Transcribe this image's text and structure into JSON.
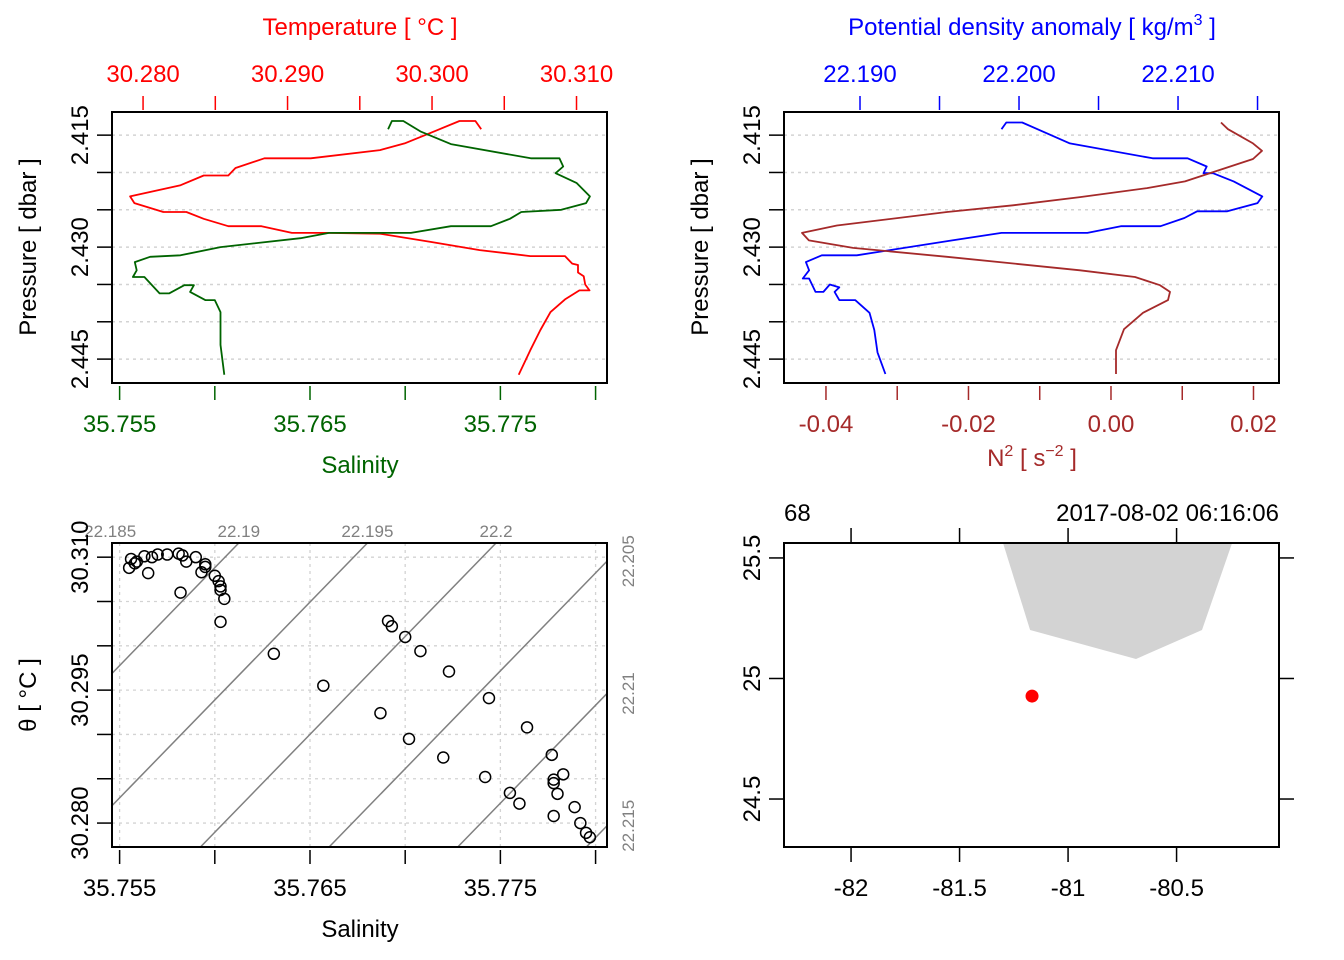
{
  "colors": {
    "temperature": "#FF0000",
    "salinity": "#006400",
    "density": "#0000FF",
    "n2": "#A52A2A",
    "station": "#FF0000",
    "land": "#D3D3D3",
    "isopycnal": "#808080",
    "grid": "#D3D3D3"
  },
  "chart_data": [
    {
      "type": "line",
      "panel": "profile-temperature-salinity",
      "top_axis": {
        "label": "Temperature [ °C ]",
        "lim": [
          30.27785,
          30.31211
        ],
        "ticks": [
          30.28,
          30.285,
          30.29,
          30.295,
          30.3,
          30.305,
          30.31
        ],
        "tick_labels": [
          "30.280",
          "",
          "30.290",
          "",
          "30.300",
          "",
          "30.310"
        ]
      },
      "bottom_axis": {
        "label": "Salinity",
        "lim": [
          35.7546,
          35.7806
        ],
        "ticks": [
          35.755,
          35.76,
          35.765,
          35.77,
          35.775,
          35.78
        ],
        "tick_labels": [
          "35.755",
          "",
          "35.765",
          "",
          "35.775",
          ""
        ]
      },
      "y_axis": {
        "label": "Pressure [ dbar ]",
        "lim": [
          2.4119,
          2.4482
        ],
        "reversed": true,
        "ticks": [
          2.415,
          2.42,
          2.425,
          2.43,
          2.435,
          2.44,
          2.445
        ],
        "tick_labels": [
          "2.415",
          "",
          "",
          "2.430",
          "",
          "",
          "2.445"
        ]
      },
      "grid": "horizontal-dashed",
      "series": [
        {
          "name": "Temperature",
          "axis": "top",
          "color_key": "temperature",
          "points": [
            [
              30.3034,
              2.4142
            ],
            [
              30.303,
              2.4131
            ],
            [
              30.3019,
              2.4131
            ],
            [
              30.3004,
              2.4143
            ],
            [
              30.2981,
              2.4161
            ],
            [
              30.2964,
              2.417
            ],
            [
              30.2916,
              2.4181
            ],
            [
              30.2884,
              2.4181
            ],
            [
              30.2864,
              2.4194
            ],
            [
              30.2859,
              2.4204
            ],
            [
              30.2842,
              2.4204
            ],
            [
              30.2826,
              2.4217
            ],
            [
              30.2791,
              2.4232
            ],
            [
              30.2794,
              2.4241
            ],
            [
              30.2814,
              2.4253
            ],
            [
              30.283,
              2.4253
            ],
            [
              30.2842,
              2.4262
            ],
            [
              30.2859,
              2.4272
            ],
            [
              30.2882,
              2.4272
            ],
            [
              30.2903,
              2.4281
            ],
            [
              30.2926,
              2.4281
            ],
            [
              30.2964,
              2.4282
            ],
            [
              30.2999,
              2.4293
            ],
            [
              30.3033,
              2.4304
            ],
            [
              30.3068,
              2.4312
            ],
            [
              30.3092,
              2.4312
            ],
            [
              30.3097,
              2.4322
            ],
            [
              30.3101,
              2.4324
            ],
            [
              30.3101,
              2.4334
            ],
            [
              30.3105,
              2.4339
            ],
            [
              30.3106,
              2.435
            ],
            [
              30.3109,
              2.4358
            ],
            [
              30.3102,
              2.4358
            ],
            [
              30.3092,
              2.437
            ],
            [
              30.3082,
              2.4387
            ],
            [
              30.3075,
              2.4411
            ],
            [
              30.3068,
              2.4438
            ],
            [
              30.306,
              2.4471
            ]
          ]
        },
        {
          "name": "Salinity",
          "axis": "bottom",
          "color_key": "salinity",
          "points": [
            [
              35.7691,
              2.4142
            ],
            [
              35.7693,
              2.4131
            ],
            [
              35.7699,
              2.4131
            ],
            [
              35.7708,
              2.4145
            ],
            [
              35.7724,
              2.4162
            ],
            [
              35.7766,
              2.4181
            ],
            [
              35.7781,
              2.4181
            ],
            [
              35.7783,
              2.4192
            ],
            [
              35.7779,
              2.4201
            ],
            [
              35.779,
              2.4214
            ],
            [
              35.7797,
              2.4232
            ],
            [
              35.7795,
              2.4241
            ],
            [
              35.7782,
              2.425
            ],
            [
              35.7761,
              2.4253
            ],
            [
              35.7755,
              2.4262
            ],
            [
              35.7745,
              2.4272
            ],
            [
              35.7724,
              2.4272
            ],
            [
              35.7703,
              2.4281
            ],
            [
              35.766,
              2.4281
            ],
            [
              35.7645,
              2.4288
            ],
            [
              35.7603,
              2.43
            ],
            [
              35.7582,
              2.4311
            ],
            [
              35.7566,
              2.4313
            ],
            [
              35.7558,
              2.432
            ],
            [
              35.7559,
              2.4331
            ],
            [
              35.7557,
              2.434
            ],
            [
              35.7563,
              2.434
            ],
            [
              35.7571,
              2.4362
            ],
            [
              35.7576,
              2.4362
            ],
            [
              35.7584,
              2.4351
            ],
            [
              35.7589,
              2.4351
            ],
            [
              35.7587,
              2.436
            ],
            [
              35.7595,
              2.4371
            ],
            [
              35.76,
              2.4371
            ],
            [
              35.7603,
              2.4387
            ],
            [
              35.7603,
              2.4398
            ],
            [
              35.7603,
              2.4431
            ],
            [
              35.7605,
              2.4471
            ]
          ]
        }
      ]
    },
    {
      "type": "line",
      "panel": "profile-density-n2",
      "top_axis": {
        "label_parts": [
          "Potential density anomaly [ kg/m",
          "3",
          " ]"
        ],
        "lim": [
          22.18522,
          22.21635
        ],
        "ticks": [
          22.19,
          22.195,
          22.2,
          22.205,
          22.21,
          22.215
        ],
        "tick_labels": [
          "22.190",
          "",
          "22.200",
          "",
          "22.210",
          ""
        ]
      },
      "bottom_axis": {
        "label_parts": [
          "N",
          "2",
          " [ s",
          "−2",
          " ]"
        ],
        "lim": [
          -0.04589,
          0.02358
        ],
        "ticks": [
          -0.04,
          -0.03,
          -0.02,
          -0.01,
          0.0,
          0.01,
          0.02
        ],
        "tick_labels": [
          "-0.04",
          "",
          "-0.02",
          "",
          "0.00",
          "",
          "0.02"
        ]
      },
      "y_axis": {
        "label": "Pressure [ dbar ]",
        "lim": [
          2.4119,
          2.4482
        ],
        "reversed": true,
        "ticks": [
          2.415,
          2.42,
          2.425,
          2.43,
          2.435,
          2.44,
          2.445
        ],
        "tick_labels": [
          "2.415",
          "",
          "",
          "2.430",
          "",
          "",
          "2.445"
        ]
      },
      "grid": "horizontal-dashed",
      "series": [
        {
          "name": "Potential density anomaly",
          "axis": "top",
          "color_key": "density",
          "points": [
            [
              22.1989,
              2.4142
            ],
            [
              22.1992,
              2.4133
            ],
            [
              22.2002,
              2.4133
            ],
            [
              22.2032,
              2.4161
            ],
            [
              22.2084,
              2.4181
            ],
            [
              22.2106,
              2.4181
            ],
            [
              22.2118,
              2.4192
            ],
            [
              22.2116,
              2.4201
            ],
            [
              22.2122,
              2.4201
            ],
            [
              22.2135,
              2.4212
            ],
            [
              22.2153,
              2.4232
            ],
            [
              22.215,
              2.4241
            ],
            [
              22.2131,
              2.4252
            ],
            [
              22.2112,
              2.4252
            ],
            [
              22.2104,
              2.4261
            ],
            [
              22.2089,
              2.4272
            ],
            [
              22.2064,
              2.4272
            ],
            [
              22.2043,
              2.4281
            ],
            [
              22.1989,
              2.4281
            ],
            [
              22.1958,
              2.4291
            ],
            [
              22.1898,
              2.4311
            ],
            [
              22.1876,
              2.4311
            ],
            [
              22.1866,
              2.432
            ],
            [
              22.1868,
              2.4331
            ],
            [
              22.1864,
              2.4342
            ],
            [
              22.1868,
              2.4342
            ],
            [
              22.1872,
              2.436
            ],
            [
              22.1877,
              2.436
            ],
            [
              22.1881,
              2.435
            ],
            [
              22.1887,
              2.4354
            ],
            [
              22.1884,
              2.436
            ],
            [
              22.1887,
              2.4371
            ],
            [
              22.1897,
              2.4371
            ],
            [
              22.1906,
              2.4388
            ],
            [
              22.1909,
              2.4411
            ],
            [
              22.1911,
              2.4441
            ],
            [
              22.1916,
              2.447
            ]
          ]
        },
        {
          "name": "N2",
          "axis": "bottom",
          "color_key": "n2",
          "points": [
            [
              0.01544,
              2.4133
            ],
            [
              0.01642,
              2.4142
            ],
            [
              0.01993,
              2.4161
            ],
            [
              0.02119,
              2.4171
            ],
            [
              0.01993,
              2.4182
            ],
            [
              0.01039,
              2.4212
            ],
            [
              0.00505,
              2.4221
            ],
            [
              -0.00435,
              2.4233
            ],
            [
              -0.01375,
              2.4244
            ],
            [
              -0.02302,
              2.4253
            ],
            [
              -0.03846,
              2.4271
            ],
            [
              -0.04337,
              2.4281
            ],
            [
              -0.04239,
              2.4291
            ],
            [
              -0.03621,
              2.4301
            ],
            [
              -0.02302,
              2.4313
            ],
            [
              -0.00435,
              2.4331
            ],
            [
              0.00337,
              2.434
            ],
            [
              0.00688,
              2.4351
            ],
            [
              0.00828,
              2.436
            ],
            [
              0.008,
              2.4371
            ],
            [
              0.00449,
              2.4388
            ],
            [
              0.00182,
              2.441
            ],
            [
              0.0007,
              2.4438
            ],
            [
              0.0007,
              2.447
            ]
          ]
        }
      ]
    },
    {
      "type": "scatter",
      "panel": "ts-diagram",
      "x_axis": {
        "label": "Salinity",
        "lim": [
          35.7546,
          35.7806
        ],
        "ticks": [
          35.755,
          35.76,
          35.765,
          35.77,
          35.775,
          35.78
        ],
        "tick_labels": [
          "35.755",
          "",
          "35.765",
          "",
          "35.775",
          ""
        ]
      },
      "y_axis": {
        "label": "θ [ °C ]",
        "lim": [
          30.2773,
          30.3116
        ],
        "ticks": [
          30.28,
          30.285,
          30.29,
          30.295,
          30.3,
          30.305,
          30.31
        ],
        "tick_labels": [
          "30.280",
          "",
          "",
          "30.295",
          "",
          "",
          "30.310"
        ]
      },
      "grid": "both-dashed",
      "isopycnals": {
        "levels_top": [
          22.185,
          22.19,
          22.195,
          22.2
        ],
        "labels_top": [
          "22.185",
          "22.19",
          "22.195",
          "22.2"
        ],
        "levels_right": [
          22.205,
          22.21,
          22.215
        ],
        "labels_right": [
          "22.205",
          "22.21",
          "22.215"
        ]
      },
      "points": [
        [
          35.7555,
          30.3088
        ],
        [
          35.7556,
          30.3098
        ],
        [
          35.7558,
          30.3093
        ],
        [
          35.7559,
          30.3095
        ],
        [
          35.7563,
          30.3101
        ],
        [
          35.7565,
          30.3082
        ],
        [
          35.7567,
          30.31
        ],
        [
          35.757,
          30.3103
        ],
        [
          35.7575,
          30.3103
        ],
        [
          35.7581,
          30.3104
        ],
        [
          35.7582,
          30.306
        ],
        [
          35.7583,
          30.3102
        ],
        [
          35.7585,
          30.3095
        ],
        [
          35.759,
          30.31
        ],
        [
          35.7593,
          30.3083
        ],
        [
          35.7595,
          30.3092
        ],
        [
          35.7595,
          30.3089
        ],
        [
          35.76,
          30.3079
        ],
        [
          35.7602,
          30.3073
        ],
        [
          35.7603,
          30.3067
        ],
        [
          35.7603,
          30.3063
        ],
        [
          35.7605,
          30.3053
        ],
        [
          35.7603,
          30.3027
        ],
        [
          35.7631,
          30.2991
        ],
        [
          35.7657,
          30.2955
        ],
        [
          35.7687,
          30.2924
        ],
        [
          35.7691,
          30.3028
        ],
        [
          35.7693,
          30.3022
        ],
        [
          35.77,
          30.301
        ],
        [
          35.7708,
          30.2994
        ],
        [
          35.7723,
          30.2971
        ],
        [
          35.7744,
          30.2941
        ],
        [
          35.7702,
          30.2895
        ],
        [
          35.7764,
          30.2908
        ],
        [
          35.772,
          30.2874
        ],
        [
          35.7777,
          30.2877
        ],
        [
          35.7742,
          30.2852
        ],
        [
          35.7778,
          30.2849
        ],
        [
          35.7778,
          30.2845
        ],
        [
          35.7783,
          30.2855
        ],
        [
          35.778,
          30.2833
        ],
        [
          35.7755,
          30.2834
        ],
        [
          35.776,
          30.2822
        ],
        [
          35.7778,
          30.2808
        ],
        [
          35.7789,
          30.2818
        ],
        [
          35.7792,
          30.28
        ],
        [
          35.7795,
          30.2789
        ],
        [
          35.7797,
          30.2784
        ]
      ]
    },
    {
      "type": "map",
      "panel": "station-map",
      "header": {
        "station": "68",
        "time": "2017-08-02 06:16:06"
      },
      "x_axis": {
        "lim": [
          -82.309,
          -80.028
        ],
        "ticks": [
          -82,
          -81.5,
          -81,
          -80.5
        ],
        "tick_labels": [
          "-82",
          "-81.5",
          "-81",
          "-80.5"
        ]
      },
      "y_axis": {
        "lim": [
          24.301,
          25.562
        ],
        "ticks": [
          24.5,
          25,
          25.5
        ],
        "tick_labels": [
          "24.5",
          "25",
          "25.5"
        ]
      },
      "land_polygon": [
        [
          -81.3,
          25.562
        ],
        [
          -81.175,
          25.201
        ],
        [
          -80.687,
          25.081
        ],
        [
          -80.383,
          25.201
        ],
        [
          -80.244,
          25.562
        ]
      ],
      "station": {
        "lon": -81.166,
        "lat": 24.927
      }
    }
  ]
}
